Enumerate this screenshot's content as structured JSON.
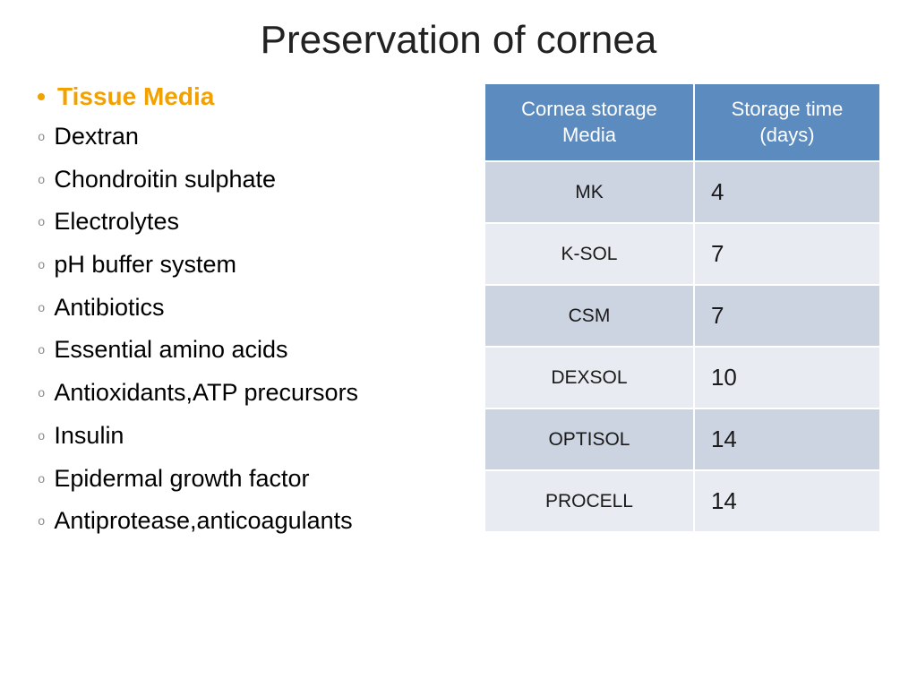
{
  "title": "Preservation of cornea",
  "heading": {
    "text": "Tissue Media",
    "color": "#f2a100",
    "bullet_color": "#f2a100"
  },
  "list_items": [
    "Dextran",
    "Chondroitin sulphate",
    "Electrolytes",
    "pH buffer system",
    "Antibiotics",
    "Essential amino acids",
    "Antioxidants,ATP precursors",
    "Insulin",
    "Epidermal growth factor",
    "Antiprotease,anticoagulants"
  ],
  "table": {
    "header_bg": "#5b8bbf",
    "header_color": "#ffffff",
    "row_odd_bg": "#cdd4e1",
    "row_even_bg": "#e8ebf2",
    "columns": [
      "Cornea storage Media",
      "Storage time (days)"
    ],
    "rows": [
      {
        "media": "MK",
        "days": "4"
      },
      {
        "media": "K-SOL",
        "days": "7"
      },
      {
        "media": "CSM",
        "days": "7"
      },
      {
        "media": "DEXSOL",
        "days": "10"
      },
      {
        "media": "OPTISOL",
        "days": "14"
      },
      {
        "media": "PROCELL",
        "days": "14"
      }
    ]
  },
  "fonts": {
    "title_size": 44,
    "heading_size": 28,
    "item_size": 27,
    "table_header_size": 22,
    "table_cell_size": 22
  }
}
